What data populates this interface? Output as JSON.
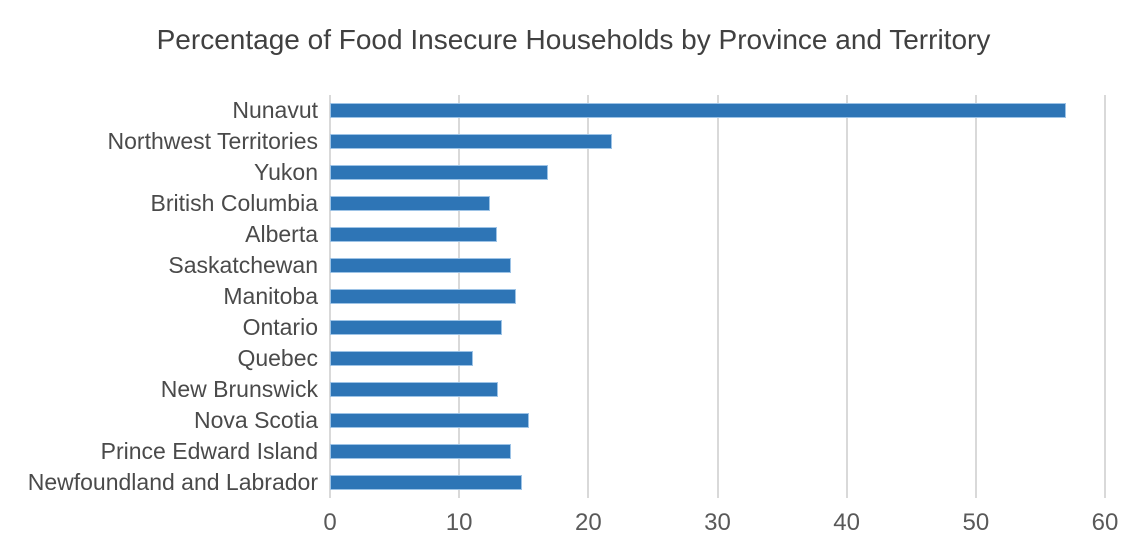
{
  "chart_data": {
    "type": "bar",
    "orientation": "horizontal",
    "title": "Percentage of Food Insecure Households by Province and Territory",
    "categories": [
      "Nunavut",
      "Northwest Territories",
      "Yukon",
      "British Columbia",
      "Alberta",
      "Saskatchewan",
      "Manitoba",
      "Ontario",
      "Quebec",
      "New Brunswick",
      "Nova Scotia",
      "Prince Edward Island",
      "Newfoundland and Labrador"
    ],
    "values": [
      57.0,
      21.8,
      16.9,
      12.4,
      12.9,
      14.0,
      14.4,
      13.3,
      11.1,
      13.0,
      15.4,
      14.0,
      14.9
    ],
    "xlabel": "",
    "ylabel": "",
    "xlim": [
      0,
      60
    ],
    "x_ticks": [
      0,
      10,
      20,
      30,
      40,
      50,
      60
    ],
    "grid": "vertical-gridlines",
    "legend": "none",
    "colors": {
      "bar_fill": "#2E75B6",
      "bar_border": "#9DC3E6",
      "gridline": "#D9D9D9",
      "title_text": "#404040",
      "category_text": "#4A4A4A",
      "tick_text": "#595959",
      "background": "#FFFFFF"
    }
  }
}
